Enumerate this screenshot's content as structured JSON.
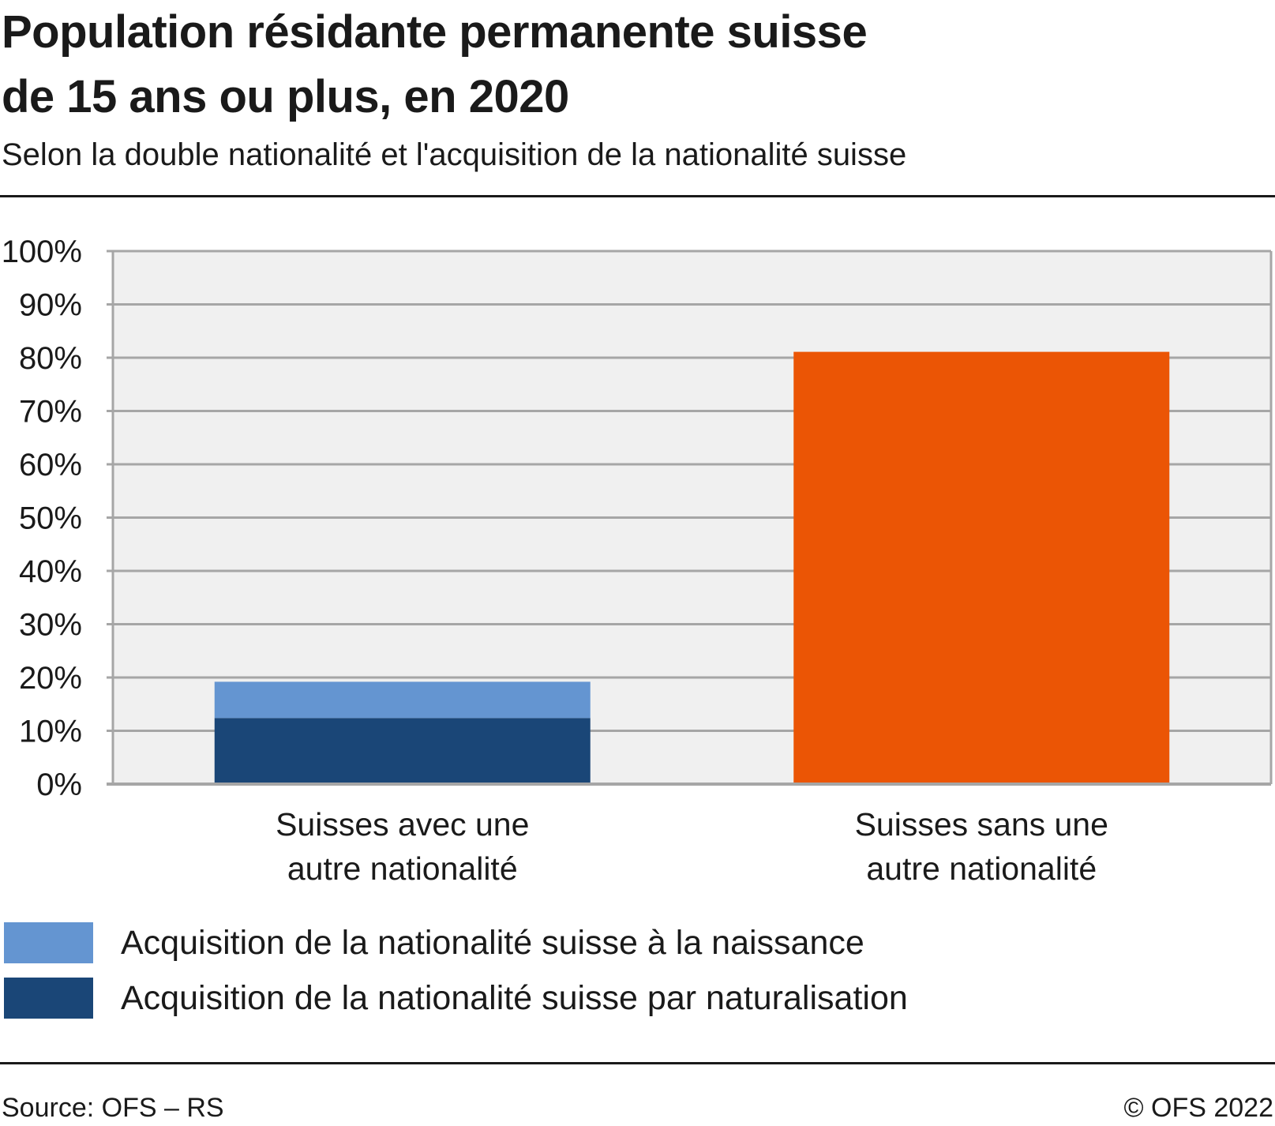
{
  "title_lines": [
    "Population résidante permanente suisse",
    "de 15 ans ou plus, en 2020"
  ],
  "subtitle": "Selon la double nationalité et l'acquisition de la nationalité suisse",
  "source": "Source: OFS –  RS",
  "copyright": "© OFS 2022",
  "colors": {
    "birth": "#6495d1",
    "naturalisation": "#1a4677",
    "without": "#eb5505",
    "plot_bg": "#f0f0f0",
    "grid": "#a6a6a6"
  },
  "chart_data": {
    "type": "bar",
    "stacked": true,
    "categories": [
      [
        "Suisses avec une",
        "autre nationalité"
      ],
      [
        "Suisses sans une",
        "autre nationalité"
      ]
    ],
    "series": [
      {
        "name": "Acquisition de la nationalité suisse par naturalisation",
        "color_key": "naturalisation",
        "values": [
          12.4,
          null
        ]
      },
      {
        "name": "Acquisition de la nationalité suisse à la naissance",
        "color_key": "birth",
        "values": [
          6.8,
          null
        ]
      },
      {
        "name": "",
        "color_key": "without",
        "values": [
          null,
          81.1
        ]
      }
    ],
    "ylim": [
      0,
      100
    ],
    "yticks": [
      "0%",
      "10%",
      "20%",
      "30%",
      "40%",
      "50%",
      "60%",
      "70%",
      "80%",
      "90%",
      "100%"
    ],
    "grid": true,
    "legend_position": "bottom-left"
  },
  "legend": [
    {
      "label": "Acquisition de la nationalité suisse à la naissance",
      "color_key": "birth"
    },
    {
      "label": "Acquisition de la nationalité suisse par naturalisation",
      "color_key": "naturalisation"
    }
  ]
}
